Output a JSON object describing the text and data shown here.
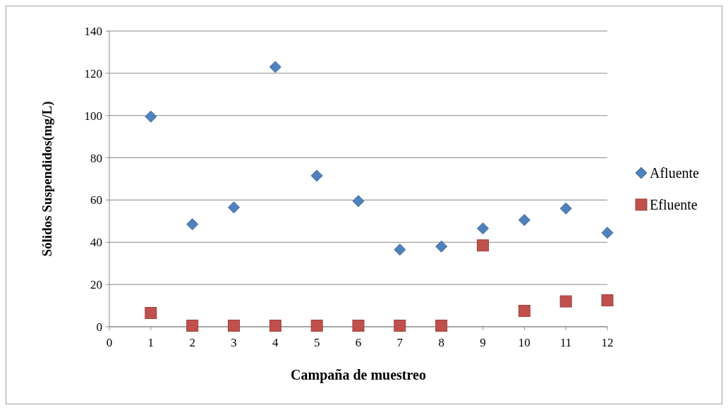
{
  "chart_data": {
    "type": "scatter",
    "xlabel": "Campaña de muestreo",
    "ylabel": "Sólidos Suspendidos(mg/L)",
    "x": [
      1,
      2,
      3,
      4,
      5,
      6,
      7,
      8,
      9,
      10,
      11,
      12
    ],
    "series": [
      {
        "name": "Afluente",
        "color": "#4f81bd",
        "marker": "diamond",
        "values": [
          99.5,
          48.5,
          56.5,
          123,
          71.5,
          59.5,
          36.5,
          38,
          46.5,
          50.5,
          56,
          44.5
        ]
      },
      {
        "name": "Efluente",
        "color": "#c0504d",
        "marker": "square",
        "values": [
          6.5,
          0.5,
          0.5,
          0.5,
          0.5,
          0.5,
          0.5,
          0.5,
          38.5,
          7.5,
          12,
          12.5
        ]
      }
    ],
    "xlim": [
      0,
      12
    ],
    "xticks": [
      0,
      1,
      2,
      3,
      4,
      5,
      6,
      7,
      8,
      9,
      10,
      11,
      12
    ],
    "ylim": [
      0,
      140
    ],
    "yticks": [
      0,
      20,
      40,
      60,
      80,
      100,
      120,
      140
    ],
    "grid": "y",
    "legend": "right"
  }
}
